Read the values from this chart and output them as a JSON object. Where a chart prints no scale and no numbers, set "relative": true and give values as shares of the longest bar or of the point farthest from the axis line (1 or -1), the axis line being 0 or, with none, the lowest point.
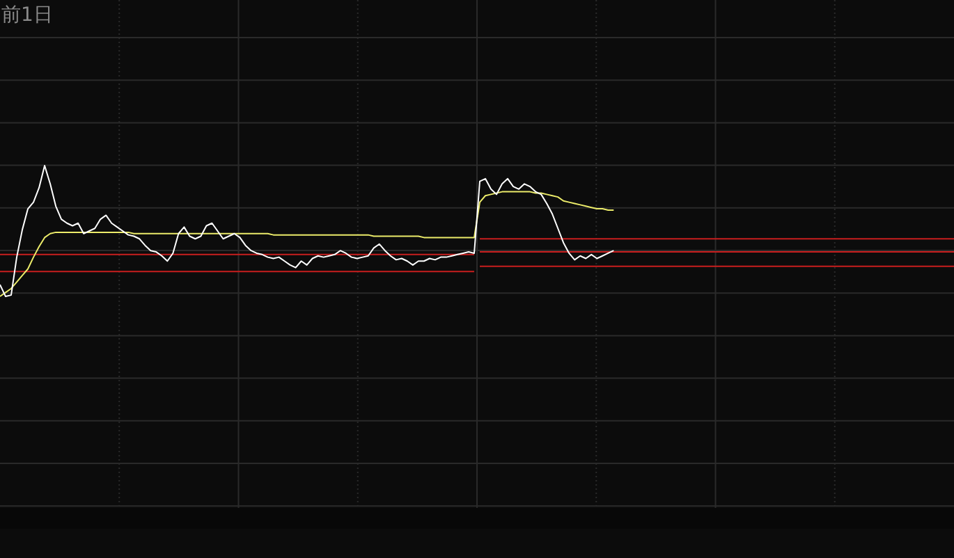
{
  "chart_data": {
    "type": "line",
    "relative": true,
    "grid": true,
    "annotations": [
      "前1日"
    ],
    "categories": [
      null,
      null,
      null,
      null,
      null,
      null,
      null,
      null,
      null,
      null,
      null,
      null,
      null,
      null,
      null,
      null,
      null,
      null,
      null,
      null,
      null,
      null,
      null,
      null,
      null,
      null,
      null,
      null,
      null,
      null,
      null,
      null,
      null,
      null,
      null,
      null,
      null,
      null,
      null,
      null,
      null,
      null,
      null,
      null,
      null,
      null,
      null,
      null,
      null,
      null,
      null,
      null,
      null,
      null,
      null,
      null,
      null,
      null,
      null,
      null,
      null,
      null,
      null,
      null,
      null,
      null,
      null,
      null,
      null,
      null,
      null,
      null,
      null,
      null,
      null,
      null,
      null,
      null,
      null,
      null,
      null,
      null,
      null,
      null,
      null,
      null,
      null,
      null,
      null,
      null,
      null,
      null,
      null,
      null,
      null,
      null,
      null,
      null,
      null,
      null,
      null,
      null,
      null,
      null,
      null,
      null,
      null,
      null,
      null,
      null,
      null,
      null,
      null,
      null,
      null,
      null,
      null,
      null,
      null,
      null,
      null,
      null,
      null,
      null,
      null,
      null,
      null,
      null,
      null,
      null,
      null,
      null,
      null,
      null,
      null,
      null,
      null,
      null,
      null,
      null,
      null,
      null,
      null,
      null,
      null,
      null,
      null,
      null,
      null,
      null,
      null,
      null,
      null,
      null,
      null,
      null,
      null,
      null,
      null,
      null,
      null,
      null,
      null,
      null,
      null,
      null,
      null,
      null,
      null,
      null,
      null,
      null
    ],
    "series": [
      {
        "color": "#c81e1e",
        "values": [
          0.32,
          0.32,
          0.32,
          0.32,
          0.32,
          0.32,
          0.32,
          0.32,
          0.32,
          0.32,
          0.32,
          0.32,
          0.32,
          0.32,
          0.32,
          0.32,
          0.32,
          0.32,
          0.32,
          0.32,
          0.32,
          0.32,
          0.32,
          0.32,
          0.32,
          0.32,
          0.32,
          0.32,
          0.32,
          0.32,
          0.32,
          0.32,
          0.32,
          0.32,
          0.32,
          0.32,
          0.32,
          0.32,
          0.32,
          0.32,
          0.32,
          0.32,
          0.32,
          0.32,
          0.32,
          0.32,
          0.32,
          0.32,
          0.32,
          0.32,
          0.32,
          0.32,
          0.32,
          0.32,
          0.32,
          0.32,
          0.32,
          0.32,
          0.32,
          0.32,
          0.32,
          0.32,
          0.32,
          0.32,
          0.32,
          0.32,
          0.32,
          0.32,
          0.32,
          0.32,
          0.32,
          0.32,
          0.32,
          0.32,
          0.32,
          0.32,
          0.32,
          0.32,
          0.32,
          0.32,
          0.32,
          0.32,
          0.32,
          0.32,
          0.32,
          0.32,
          null,
          null,
          null,
          null,
          null,
          null,
          null,
          null,
          null,
          null,
          null,
          null,
          null,
          null,
          null,
          null,
          null,
          null,
          null,
          null,
          null,
          null,
          null,
          null,
          null,
          null,
          null,
          null,
          null,
          null,
          null,
          null,
          null,
          null,
          null,
          null,
          null,
          null,
          null,
          null,
          null,
          null,
          null,
          null,
          null,
          null,
          null,
          null,
          null,
          null,
          null,
          null,
          null,
          null,
          null,
          null,
          null,
          null,
          null,
          null,
          null,
          null,
          null,
          null,
          null,
          null,
          null,
          null,
          null,
          null,
          null,
          null,
          null,
          null,
          null,
          null,
          null,
          null,
          null,
          null,
          null,
          null,
          null,
          null,
          null,
          null
        ]
      },
      {
        "color": "#c81e1e",
        "values": [
          0.19,
          0.19,
          0.19,
          0.19,
          0.19,
          0.19,
          0.19,
          0.19,
          0.19,
          0.19,
          0.19,
          0.19,
          0.19,
          0.19,
          0.19,
          0.19,
          0.19,
          0.19,
          0.19,
          0.19,
          0.19,
          0.19,
          0.19,
          0.19,
          0.19,
          0.19,
          0.19,
          0.19,
          0.19,
          0.19,
          0.19,
          0.19,
          0.19,
          0.19,
          0.19,
          0.19,
          0.19,
          0.19,
          0.19,
          0.19,
          0.19,
          0.19,
          0.19,
          0.19,
          0.19,
          0.19,
          0.19,
          0.19,
          0.19,
          0.19,
          0.19,
          0.19,
          0.19,
          0.19,
          0.19,
          0.19,
          0.19,
          0.19,
          0.19,
          0.19,
          0.19,
          0.19,
          0.19,
          0.19,
          0.19,
          0.19,
          0.19,
          0.19,
          0.19,
          0.19,
          0.19,
          0.19,
          0.19,
          0.19,
          0.19,
          0.19,
          0.19,
          0.19,
          0.19,
          0.19,
          0.19,
          0.19,
          0.19,
          0.19,
          0.19,
          0.19,
          null,
          null,
          null,
          null,
          null,
          null,
          null,
          null,
          null,
          null,
          null,
          null,
          null,
          null,
          null,
          null,
          null,
          null,
          null,
          null,
          null,
          null,
          null,
          null,
          null,
          null,
          null,
          null,
          null,
          null,
          null,
          null,
          null,
          null,
          null,
          null,
          null,
          null,
          null,
          null,
          null,
          null,
          null,
          null,
          null,
          null,
          null,
          null,
          null,
          null,
          null,
          null,
          null,
          null,
          null,
          null,
          null,
          null,
          null,
          null,
          null,
          null,
          null,
          null,
          null,
          null,
          null,
          null,
          null,
          null,
          null,
          null,
          null,
          null,
          null,
          null,
          null,
          null,
          null,
          null,
          null,
          null,
          null,
          null,
          null,
          null
        ]
      },
      {
        "color": "#c81e1e",
        "values": [
          null,
          null,
          null,
          null,
          null,
          null,
          null,
          null,
          null,
          null,
          null,
          null,
          null,
          null,
          null,
          null,
          null,
          null,
          null,
          null,
          null,
          null,
          null,
          null,
          null,
          null,
          null,
          null,
          null,
          null,
          null,
          null,
          null,
          null,
          null,
          null,
          null,
          null,
          null,
          null,
          null,
          null,
          null,
          null,
          null,
          null,
          null,
          null,
          null,
          null,
          null,
          null,
          null,
          null,
          null,
          null,
          null,
          null,
          null,
          null,
          null,
          null,
          null,
          null,
          null,
          null,
          null,
          null,
          null,
          null,
          null,
          null,
          null,
          null,
          null,
          null,
          null,
          null,
          null,
          null,
          null,
          null,
          null,
          null,
          null,
          null,
          0.44,
          0.44,
          0.44,
          0.44,
          0.44,
          0.44,
          0.44,
          0.44,
          0.44,
          0.44,
          0.44,
          0.44,
          0.44,
          0.44,
          0.44,
          0.44,
          0.44,
          0.44,
          0.44,
          0.44,
          0.44,
          0.44,
          0.44,
          0.44,
          0.44,
          0.44,
          0.44,
          0.44,
          0.44,
          0.44,
          0.44,
          0.44,
          0.44,
          0.44,
          0.44,
          0.44,
          0.44,
          0.44,
          0.44,
          0.44,
          0.44,
          0.44,
          0.44,
          0.44,
          0.44,
          0.44,
          0.44,
          0.44,
          0.44,
          0.44,
          0.44,
          0.44,
          0.44,
          0.44,
          0.44,
          0.44,
          0.44,
          0.44,
          0.44,
          0.44,
          0.44,
          0.44,
          0.44,
          0.44,
          0.44,
          0.44,
          0.44,
          0.44,
          0.44,
          0.44,
          0.44,
          0.44,
          0.44,
          0.44,
          0.44,
          0.44,
          0.44,
          0.44,
          0.44,
          0.44,
          0.44,
          0.44,
          0.44,
          0.44,
          0.44,
          0.44
        ]
      },
      {
        "color": "#c81e1e",
        "values": [
          null,
          null,
          null,
          null,
          null,
          null,
          null,
          null,
          null,
          null,
          null,
          null,
          null,
          null,
          null,
          null,
          null,
          null,
          null,
          null,
          null,
          null,
          null,
          null,
          null,
          null,
          null,
          null,
          null,
          null,
          null,
          null,
          null,
          null,
          null,
          null,
          null,
          null,
          null,
          null,
          null,
          null,
          null,
          null,
          null,
          null,
          null,
          null,
          null,
          null,
          null,
          null,
          null,
          null,
          null,
          null,
          null,
          null,
          null,
          null,
          null,
          null,
          null,
          null,
          null,
          null,
          null,
          null,
          null,
          null,
          null,
          null,
          null,
          null,
          null,
          null,
          null,
          null,
          null,
          null,
          null,
          null,
          null,
          null,
          null,
          null,
          0.34,
          0.34,
          0.34,
          0.34,
          0.34,
          0.34,
          0.34,
          0.34,
          0.34,
          0.34,
          0.34,
          0.34,
          0.34,
          0.34,
          0.34,
          0.34,
          0.34,
          0.34,
          0.34,
          0.34,
          0.34,
          0.34,
          0.34,
          0.34,
          0.34,
          0.34,
          0.34,
          0.34,
          0.34,
          0.34,
          0.34,
          0.34,
          0.34,
          0.34,
          0.34,
          0.34,
          0.34,
          0.34,
          0.34,
          0.34,
          0.34,
          0.34,
          0.34,
          0.34,
          0.34,
          0.34,
          0.34,
          0.34,
          0.34,
          0.34,
          0.34,
          0.34,
          0.34,
          0.34,
          0.34,
          0.34,
          0.34,
          0.34,
          0.34,
          0.34,
          0.34,
          0.34,
          0.34,
          0.34,
          0.34,
          0.34,
          0.34,
          0.34,
          0.34,
          0.34,
          0.34,
          0.34,
          0.34,
          0.34,
          0.34,
          0.34,
          0.34,
          0.34,
          0.34,
          0.34,
          0.34,
          0.34,
          0.34,
          0.34,
          0.34,
          0.34
        ]
      },
      {
        "color": "#c81e1e",
        "values": [
          null,
          null,
          null,
          null,
          null,
          null,
          null,
          null,
          null,
          null,
          null,
          null,
          null,
          null,
          null,
          null,
          null,
          null,
          null,
          null,
          null,
          null,
          null,
          null,
          null,
          null,
          null,
          null,
          null,
          null,
          null,
          null,
          null,
          null,
          null,
          null,
          null,
          null,
          null,
          null,
          null,
          null,
          null,
          null,
          null,
          null,
          null,
          null,
          null,
          null,
          null,
          null,
          null,
          null,
          null,
          null,
          null,
          null,
          null,
          null,
          null,
          null,
          null,
          null,
          null,
          null,
          null,
          null,
          null,
          null,
          null,
          null,
          null,
          null,
          null,
          null,
          null,
          null,
          null,
          null,
          null,
          null,
          null,
          null,
          null,
          null,
          0.23,
          0.23,
          0.23,
          0.23,
          0.23,
          0.23,
          0.23,
          0.23,
          0.23,
          0.23,
          0.23,
          0.23,
          0.23,
          0.23,
          0.23,
          0.23,
          0.23,
          0.23,
          0.23,
          0.23,
          0.23,
          0.23,
          0.23,
          0.23,
          0.23,
          0.23,
          0.23,
          0.23,
          0.23,
          0.23,
          0.23,
          0.23,
          0.23,
          0.23,
          0.23,
          0.23,
          0.23,
          0.23,
          0.23,
          0.23,
          0.23,
          0.23,
          0.23,
          0.23,
          0.23,
          0.23,
          0.23,
          0.23,
          0.23,
          0.23,
          0.23,
          0.23,
          0.23,
          0.23,
          0.23,
          0.23,
          0.23,
          0.23,
          0.23,
          0.23,
          0.23,
          0.23,
          0.23,
          0.23,
          0.23,
          0.23,
          0.23,
          0.23,
          0.23,
          0.23,
          0.23,
          0.23,
          0.23,
          0.23,
          0.23,
          0.23,
          0.23,
          0.23,
          0.23,
          0.23,
          0.23,
          0.23,
          0.23,
          0.23,
          0.23,
          0.23
        ]
      },
      {
        "color": "#ecec6a",
        "values": [
          0,
          0.03,
          0.06,
          0.11,
          0.16,
          0.21,
          0.3,
          0.38,
          0.45,
          0.48,
          0.49,
          0.49,
          0.49,
          0.49,
          0.49,
          0.49,
          0.49,
          0.49,
          0.49,
          0.49,
          0.49,
          0.49,
          0.49,
          0.49,
          0.48,
          0.48,
          0.48,
          0.48,
          0.48,
          0.48,
          0.48,
          0.48,
          0.48,
          0.48,
          0.48,
          0.48,
          0.48,
          0.48,
          0.48,
          0.48,
          0.48,
          0.48,
          0.48,
          0.48,
          0.48,
          0.48,
          0.48,
          0.48,
          0.48,
          0.47,
          0.47,
          0.47,
          0.47,
          0.47,
          0.47,
          0.47,
          0.47,
          0.47,
          0.47,
          0.47,
          0.47,
          0.47,
          0.47,
          0.47,
          0.47,
          0.47,
          0.47,
          0.46,
          0.46,
          0.46,
          0.46,
          0.46,
          0.46,
          0.46,
          0.46,
          0.46,
          0.45,
          0.45,
          0.45,
          0.45,
          0.45,
          0.45,
          0.45,
          0.45,
          0.45,
          0.45,
          0.72,
          0.77,
          0.78,
          0.79,
          0.8,
          0.8,
          0.8,
          0.8,
          0.8,
          0.8,
          0.79,
          0.79,
          0.78,
          0.77,
          0.76,
          0.73,
          0.72,
          0.71,
          0.7,
          0.69,
          0.68,
          0.67,
          0.67,
          0.66,
          0.66,
          null,
          null,
          null,
          null,
          null,
          null,
          null,
          null,
          null,
          null,
          null,
          null,
          null,
          null,
          null,
          null,
          null,
          null,
          null,
          null,
          null,
          null,
          null,
          null,
          null,
          null,
          null,
          null,
          null,
          null,
          null,
          null,
          null,
          null,
          null,
          null,
          null,
          null,
          null,
          null,
          null,
          null,
          null,
          null,
          null,
          null,
          null,
          null,
          null,
          null,
          null,
          null,
          null,
          null,
          null,
          null,
          null,
          null,
          null,
          null,
          null
        ]
      },
      {
        "color": "#ffffff",
        "values": [
          0.09,
          0,
          0.01,
          0.3,
          0.51,
          0.67,
          0.72,
          0.83,
          1,
          0.86,
          0.69,
          0.59,
          0.56,
          0.54,
          0.56,
          0.48,
          0.5,
          0.52,
          0.59,
          0.62,
          0.56,
          0.53,
          0.5,
          0.47,
          0.46,
          0.44,
          0.39,
          0.35,
          0.34,
          0.31,
          0.27,
          0.33,
          0.48,
          0.53,
          0.46,
          0.44,
          0.46,
          0.54,
          0.56,
          0.5,
          0.44,
          0.46,
          0.48,
          0.45,
          0.39,
          0.35,
          0.33,
          0.32,
          0.3,
          0.29,
          0.3,
          0.27,
          0.24,
          0.22,
          0.27,
          0.24,
          0.29,
          0.31,
          0.3,
          0.31,
          0.32,
          0.35,
          0.33,
          0.3,
          0.29,
          0.3,
          0.31,
          0.37,
          0.4,
          0.35,
          0.31,
          0.28,
          0.29,
          0.27,
          0.24,
          0.27,
          0.27,
          0.29,
          0.28,
          0.3,
          0.3,
          0.31,
          0.32,
          0.33,
          0.34,
          0.33,
          0.88,
          0.9,
          0.82,
          0.78,
          0.86,
          0.9,
          0.84,
          0.82,
          0.86,
          0.84,
          0.8,
          0.78,
          0.71,
          0.63,
          0.52,
          0.41,
          0.33,
          0.28,
          0.31,
          0.29,
          0.32,
          0.29,
          0.31,
          0.33,
          0.35,
          null,
          null,
          null,
          null,
          null,
          null,
          null,
          null,
          null,
          null,
          null,
          null,
          null,
          null,
          null,
          null,
          null,
          null,
          null,
          null,
          null,
          null,
          null,
          null,
          null,
          null,
          null,
          null,
          null,
          null,
          null,
          null,
          null,
          null,
          null,
          null,
          null,
          null,
          null,
          null,
          null,
          null,
          null,
          null,
          null,
          null,
          null,
          null,
          null,
          null,
          null,
          null,
          null,
          null,
          null,
          null,
          null,
          null,
          null,
          null,
          null
        ]
      }
    ]
  }
}
